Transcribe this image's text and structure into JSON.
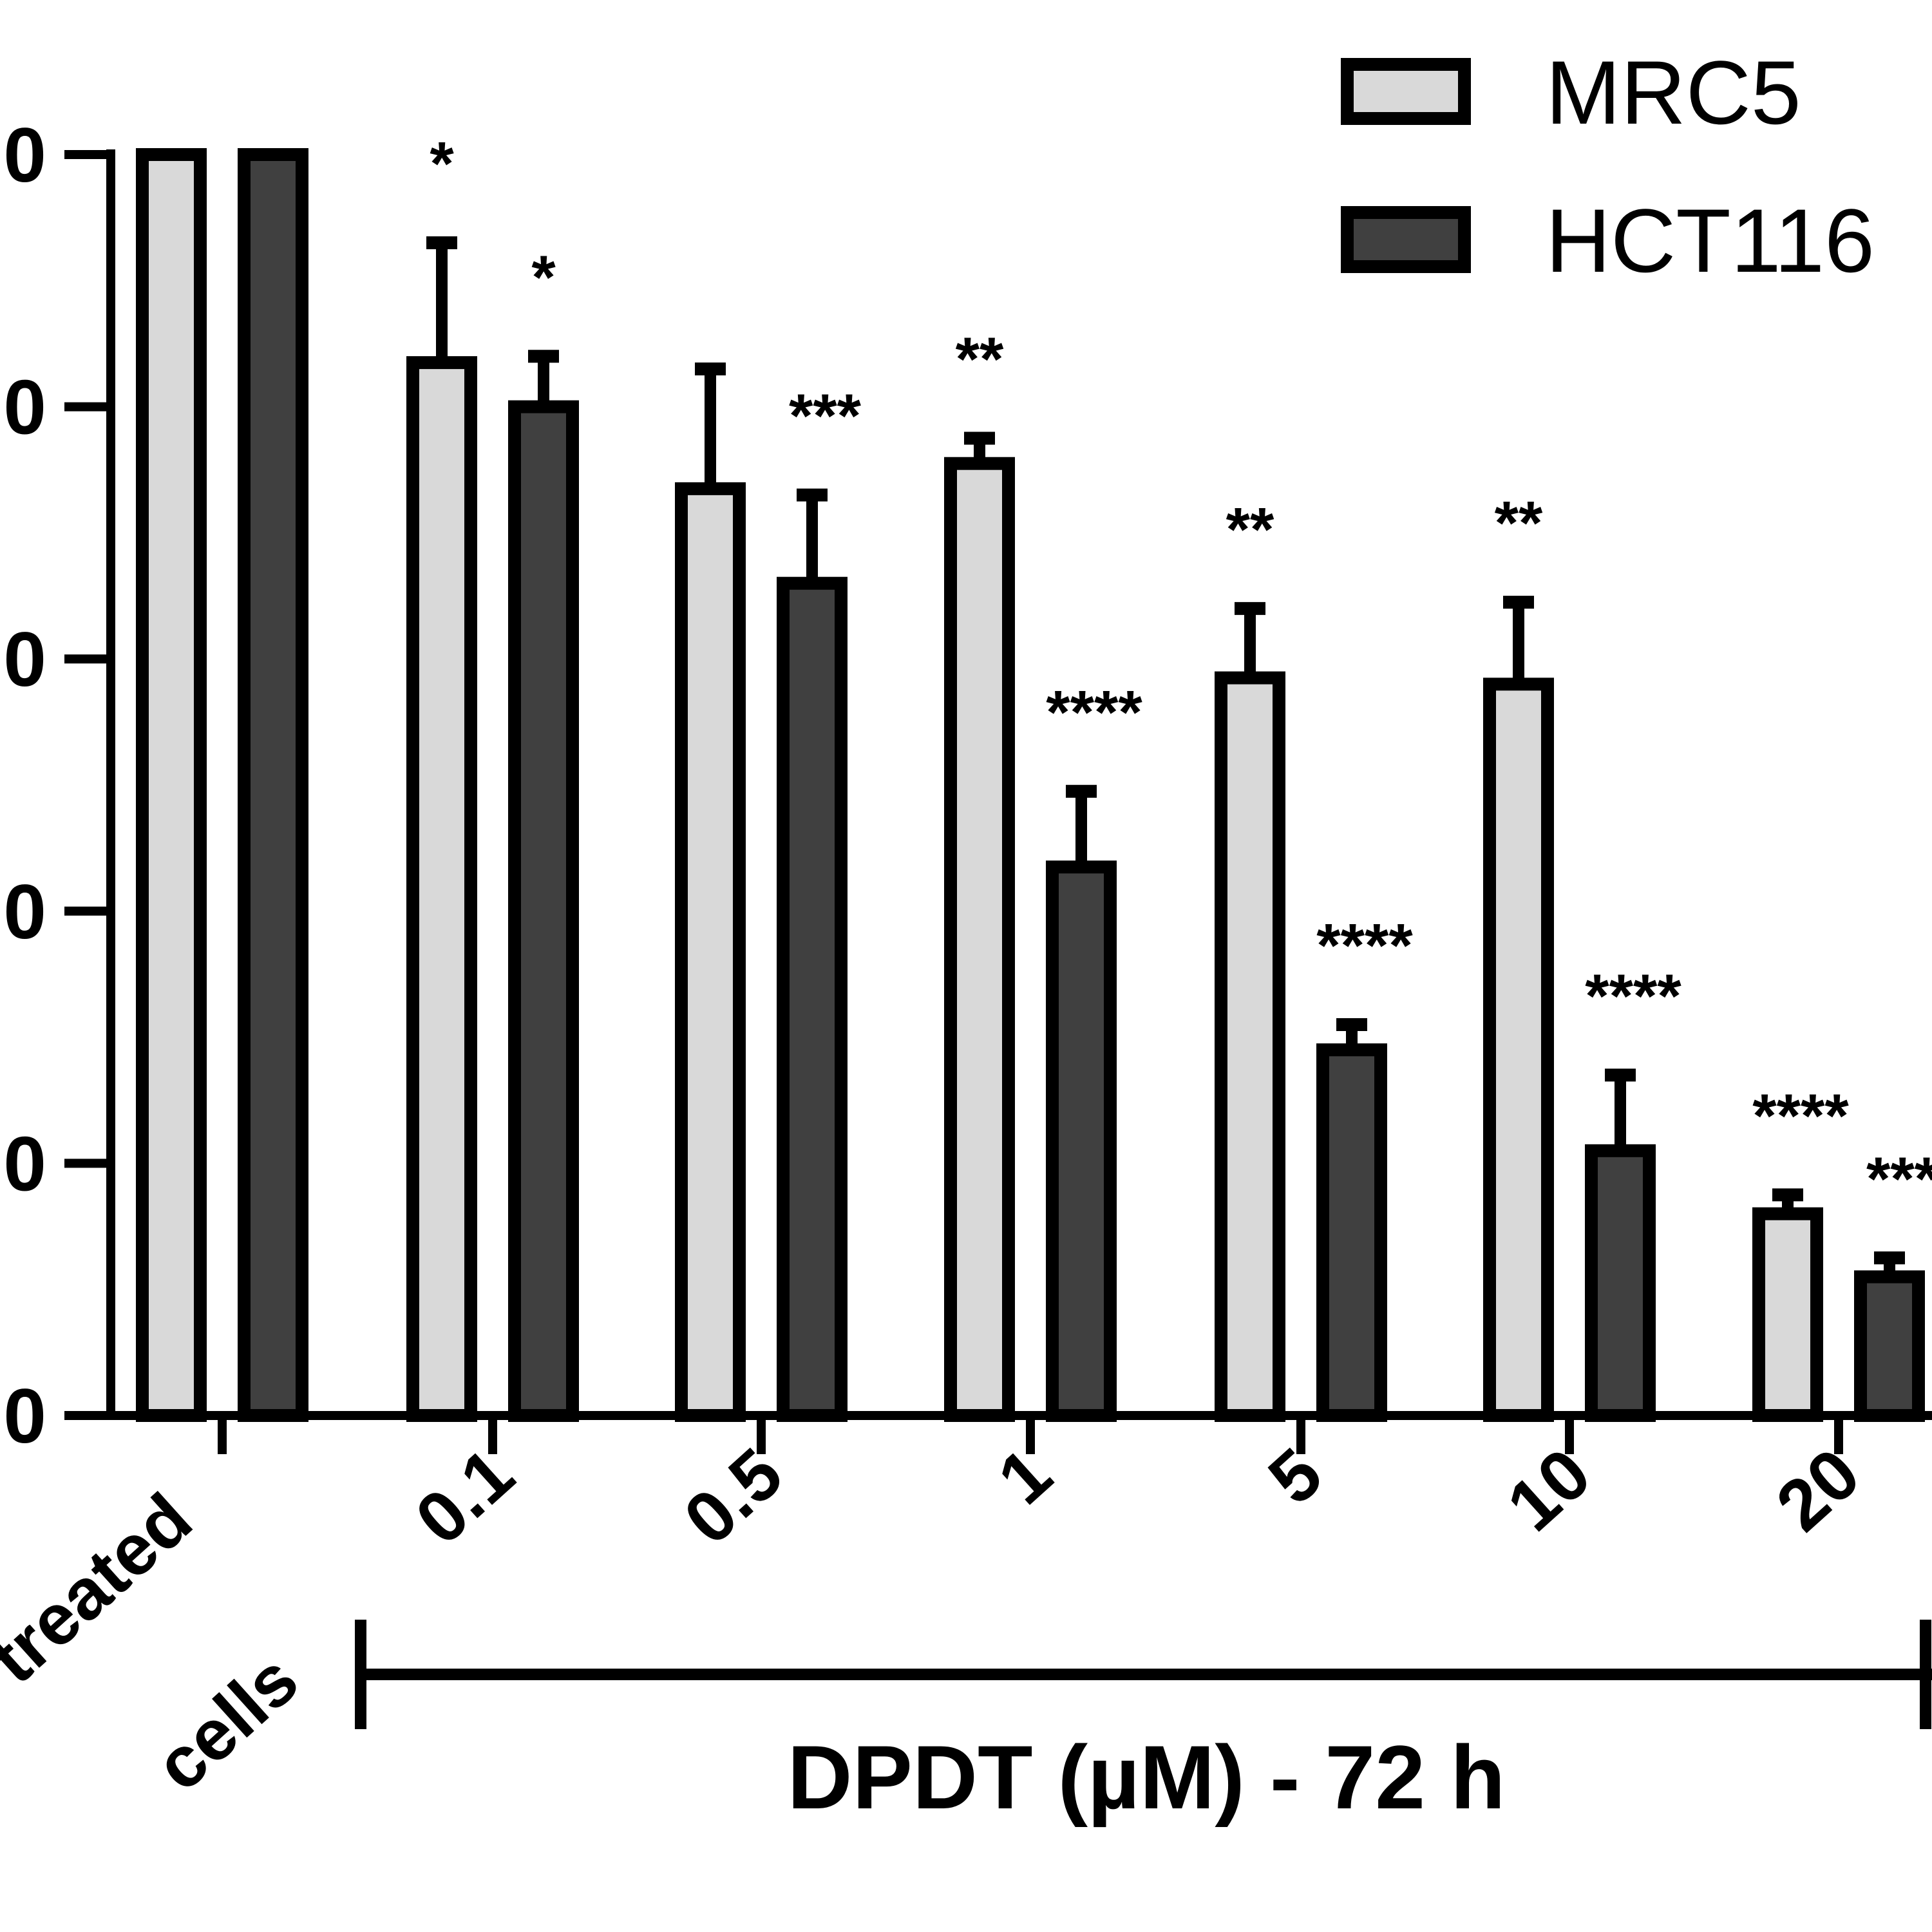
{
  "chart_data": {
    "type": "bar",
    "categories": [
      "treated",
      "0.1",
      "0.5",
      "1",
      "5",
      "10",
      "20"
    ],
    "category_extra_label": "cells",
    "ytick_labels": [
      "0",
      "0",
      "0",
      "0",
      "0",
      "0"
    ],
    "ylim": [
      0,
      100
    ],
    "xlabel": "DPDT (µM) - 72 h",
    "legend_position": "top-right",
    "series": [
      {
        "name": "MRC5",
        "color": "#d9d9d9",
        "values": [
          100,
          83.5,
          73.5,
          75.5,
          58.5,
          58,
          16
        ],
        "errors": [
          0,
          9.5,
          9.5,
          2,
          5.5,
          6.5,
          1.5
        ],
        "significance": [
          "",
          "*",
          "",
          "**",
          "**",
          "**",
          "****"
        ]
      },
      {
        "name": "HCT116",
        "color": "#404040",
        "values": [
          100,
          80,
          66,
          43.5,
          29,
          21,
          11
        ],
        "errors": [
          0,
          4,
          7,
          6,
          2,
          6,
          1.5
        ],
        "significance": [
          "",
          "*",
          "***",
          "****",
          "****",
          "****",
          "***"
        ]
      }
    ]
  }
}
